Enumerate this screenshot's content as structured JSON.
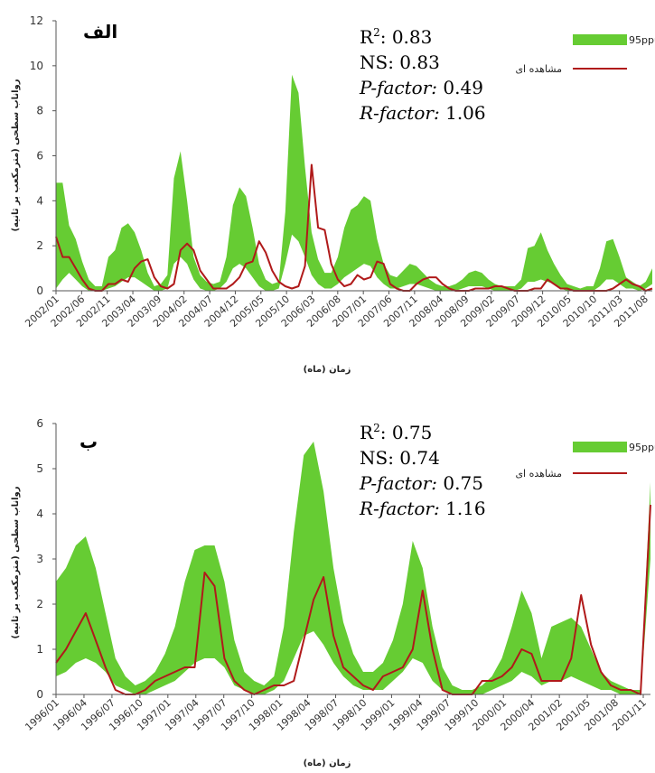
{
  "chart_data": [
    {
      "type": "area",
      "panel_label": "الف",
      "ylabel": "رواناب سطحی (مترمکعب بر ثانیه)",
      "xlabel": "زمان (ماه)",
      "ylim": [
        0,
        12
      ],
      "yticks": [
        0,
        2,
        4,
        6,
        8,
        10,
        12
      ],
      "xtick_labels": [
        "2002/01",
        "2002/06",
        "2002/11",
        "2003/04",
        "2003/09",
        "2004/02",
        "2004/07",
        "2004/12",
        "2005/05",
        "2005/10",
        "2006/03",
        "2006/08",
        "2007/01",
        "2007/06",
        "2007/11",
        "2008/04",
        "2008/09",
        "2009/02",
        "2009/07",
        "2009/12",
        "2010/05",
        "2010/10",
        "2011/03",
        "2011/08"
      ],
      "stats": {
        "r2": "0.83",
        "ns": "0.83",
        "p_factor": "0.49",
        "r_factor": "1.06"
      },
      "legend": {
        "band": "95ppu",
        "line": "مشاهده ای",
        "placement": "top-right"
      },
      "series": [
        {
          "name": "95ppu",
          "kind": "band",
          "upper": [
            4.8,
            4.8,
            2.9,
            2.3,
            1.3,
            0.5,
            0.2,
            0.2,
            1.5,
            1.8,
            2.8,
            3.0,
            2.6,
            1.8,
            0.8,
            0.2,
            0.3,
            0.7,
            5.0,
            6.2,
            4.0,
            1.5,
            0.7,
            0.4,
            0.3,
            0.4,
            1.5,
            3.8,
            4.6,
            4.2,
            2.8,
            1.2,
            0.5,
            0.3,
            0.4,
            3.5,
            9.6,
            8.8,
            5.5,
            2.6,
            1.4,
            0.8,
            0.8,
            1.5,
            2.8,
            3.6,
            3.8,
            4.2,
            4.0,
            2.3,
            1.2,
            0.7,
            0.6,
            0.9,
            1.2,
            1.1,
            0.8,
            0.5,
            0.3,
            0.2,
            0.2,
            0.3,
            0.5,
            0.8,
            0.9,
            0.8,
            0.5,
            0.3,
            0.2,
            0.2,
            0.2,
            0.5,
            1.9,
            2.0,
            2.6,
            1.8,
            1.2,
            0.7,
            0.3,
            0.2,
            0.1,
            0.2,
            0.2,
            1.0,
            2.2,
            2.3,
            1.5,
            0.6,
            0.4,
            0.2,
            0.4,
            1.0
          ],
          "lower": [
            0.1,
            0.5,
            0.8,
            0.5,
            0.2,
            0.0,
            0.0,
            0.0,
            0.1,
            0.2,
            0.4,
            0.6,
            0.6,
            0.4,
            0.2,
            0.0,
            0.0,
            0.1,
            1.2,
            1.5,
            1.2,
            0.5,
            0.1,
            0.0,
            0.0,
            0.1,
            0.4,
            1.0,
            1.2,
            1.0,
            0.6,
            0.2,
            0.0,
            0.0,
            0.1,
            1.2,
            2.5,
            2.2,
            1.5,
            0.7,
            0.3,
            0.1,
            0.1,
            0.3,
            0.6,
            0.8,
            1.0,
            1.2,
            1.1,
            0.6,
            0.3,
            0.1,
            0.1,
            0.2,
            0.3,
            0.3,
            0.2,
            0.1,
            0.0,
            0.0,
            0.0,
            0.0,
            0.1,
            0.2,
            0.2,
            0.2,
            0.1,
            0.0,
            0.0,
            0.0,
            0.0,
            0.1,
            0.4,
            0.4,
            0.5,
            0.4,
            0.3,
            0.1,
            0.0,
            0.0,
            0.0,
            0.0,
            0.0,
            0.2,
            0.5,
            0.5,
            0.3,
            0.1,
            0.1,
            0.0,
            0.1,
            0.3
          ]
        },
        {
          "name": "مشاهده ای",
          "kind": "line",
          "values": [
            2.4,
            1.5,
            1.5,
            1.0,
            0.5,
            0.1,
            0.0,
            0.0,
            0.3,
            0.3,
            0.5,
            0.4,
            1.0,
            1.3,
            1.4,
            0.6,
            0.2,
            0.1,
            0.3,
            1.8,
            2.1,
            1.8,
            0.9,
            0.5,
            0.1,
            0.1,
            0.1,
            0.3,
            0.6,
            1.2,
            1.3,
            2.2,
            1.7,
            0.9,
            0.4,
            0.2,
            0.1,
            0.2,
            1.1,
            5.6,
            2.8,
            2.7,
            1.2,
            0.5,
            0.2,
            0.3,
            0.7,
            0.5,
            0.6,
            1.3,
            1.2,
            0.3,
            0.1,
            0.0,
            0.0,
            0.3,
            0.5,
            0.6,
            0.6,
            0.3,
            0.1,
            0.0,
            0.0,
            0.0,
            0.1,
            0.1,
            0.1,
            0.2,
            0.2,
            0.1,
            0.0,
            0.0,
            0.0,
            0.1,
            0.1,
            0.5,
            0.3,
            0.1,
            0.1,
            0.0,
            0.0,
            0.0,
            0.0,
            0.0,
            0.0,
            0.1,
            0.3,
            0.5,
            0.3,
            0.2,
            0.0,
            0.1
          ]
        }
      ]
    },
    {
      "type": "area",
      "panel_label": "ب",
      "ylabel": "رواناب سطحی (مترمکعب بر ثانیه)",
      "xlabel": "زمان (ماه)",
      "ylim": [
        0,
        6
      ],
      "yticks": [
        0,
        1,
        2,
        3,
        4,
        5,
        6
      ],
      "xtick_labels": [
        "1996/01",
        "1996/04",
        "1996/07",
        "1996/10",
        "1997/01",
        "1997/04",
        "1997/07",
        "1997/10",
        "1998/01",
        "1998/04",
        "1998/07",
        "1998/10",
        "1999/01",
        "1999/04",
        "1999/07",
        "1999/10",
        "2000/01",
        "2000/04",
        "2001/02",
        "2001/05",
        "2001/08",
        "2001/11"
      ],
      "stats": {
        "r2": "0.75",
        "ns": "0.74",
        "p_factor": "0.75",
        "r_factor": "1.16"
      },
      "legend": {
        "band": "95ppu",
        "line": "مشاهده ای",
        "placement": "top-right"
      },
      "series": [
        {
          "name": "95ppu",
          "kind": "band",
          "upper": [
            2.5,
            2.8,
            3.3,
            3.5,
            2.8,
            1.8,
            0.8,
            0.4,
            0.2,
            0.3,
            0.5,
            0.9,
            1.5,
            2.5,
            3.2,
            3.3,
            3.3,
            2.5,
            1.2,
            0.5,
            0.3,
            0.2,
            0.4,
            1.5,
            3.6,
            5.3,
            5.6,
            4.5,
            2.8,
            1.6,
            0.9,
            0.5,
            0.5,
            0.7,
            1.2,
            2.0,
            3.4,
            2.8,
            1.5,
            0.6,
            0.2,
            0.1,
            0.1,
            0.2,
            0.4,
            0.8,
            1.5,
            2.3,
            1.8,
            0.8,
            1.5,
            1.6,
            1.7,
            1.5,
            1.0,
            0.5,
            0.3,
            0.2,
            0.1,
            0.1,
            4.7
          ],
          "lower": [
            0.4,
            0.5,
            0.7,
            0.8,
            0.7,
            0.5,
            0.2,
            0.1,
            0.0,
            0.0,
            0.1,
            0.2,
            0.3,
            0.5,
            0.7,
            0.8,
            0.8,
            0.6,
            0.2,
            0.1,
            0.0,
            0.0,
            0.1,
            0.3,
            0.8,
            1.3,
            1.4,
            1.1,
            0.7,
            0.4,
            0.2,
            0.1,
            0.1,
            0.1,
            0.3,
            0.5,
            0.8,
            0.7,
            0.3,
            0.1,
            0.0,
            0.0,
            0.0,
            0.0,
            0.1,
            0.2,
            0.3,
            0.5,
            0.4,
            0.2,
            0.3,
            0.3,
            0.4,
            0.3,
            0.2,
            0.1,
            0.1,
            0.0,
            0.0,
            0.0,
            3.0
          ]
        },
        {
          "name": "مشاهده ای",
          "kind": "line",
          "values": [
            0.7,
            1.0,
            1.4,
            1.8,
            1.2,
            0.6,
            0.1,
            0.0,
            0.0,
            0.1,
            0.3,
            0.4,
            0.5,
            0.6,
            0.6,
            2.7,
            2.4,
            0.8,
            0.3,
            0.1,
            0.0,
            0.1,
            0.2,
            0.2,
            0.3,
            1.2,
            2.1,
            2.6,
            1.3,
            0.6,
            0.4,
            0.2,
            0.1,
            0.4,
            0.5,
            0.6,
            1.0,
            2.3,
            1.0,
            0.1,
            0.0,
            0.0,
            0.0,
            0.3,
            0.3,
            0.4,
            0.6,
            1.0,
            0.9,
            0.3,
            0.3,
            0.3,
            0.8,
            2.2,
            1.1,
            0.5,
            0.2,
            0.1,
            0.1,
            0.0,
            4.2
          ]
        }
      ]
    }
  ],
  "style": {
    "band_color": "#66cc33",
    "line_color": "#b01a1a"
  }
}
